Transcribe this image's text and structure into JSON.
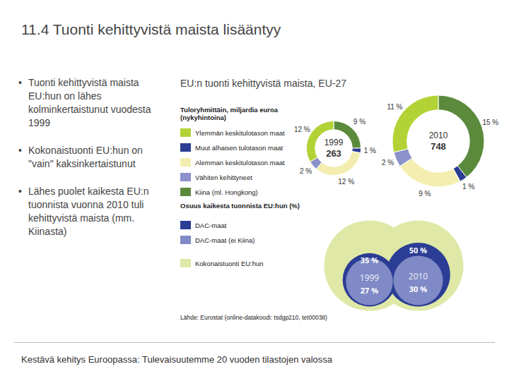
{
  "title": "11.4 Tuonti kehittyvistä maista lisääntyy",
  "bullets": [
    "Tuonti kehittyvistä maista EU:hun on lähes kolminkertaistunut vuodesta 1999",
    "Kokonaistuonti EU:hun on \"vain\" kaksinkertaistunut",
    "Lähes puolet kaikesta EU:n tuonnista vuonna 2010 tuli kehittyvistä maista (mm. Kiinasta)"
  ],
  "chart_data": [
    {
      "type": "donut",
      "title": "EU:n tuonti kehittyvistä maista, EU-27",
      "subtitle": "Tuloryhmittäin, miljardia euroa (nykyhintoina)",
      "categories": [
        "1999",
        "2010"
      ],
      "totals": [
        263,
        748
      ],
      "data_labels": true,
      "series": [
        {
          "name": "Ylemmän keskitulotason maat",
          "color": "#b3d235",
          "values": [
            12,
            11
          ],
          "value_labels": [
            "12 %",
            "11 %"
          ]
        },
        {
          "name": "Muut alhaisen tulotason maat",
          "color": "#2b3d94",
          "values": [
            1,
            1
          ],
          "value_labels": [
            "1 %",
            "1 %"
          ]
        },
        {
          "name": "Alemman keskitulotason maat",
          "color": "#f3eeb0",
          "values": [
            12,
            9
          ],
          "value_labels": [
            "12 %",
            "9 %"
          ]
        },
        {
          "name": "Vähiten kehittyneet",
          "color": "#8a91cb",
          "values": [
            2,
            2
          ],
          "value_labels": [
            "2 %",
            "2 %"
          ]
        },
        {
          "name": "Kiina (ml. Hongkong)",
          "color": "#5b8a3d",
          "values": [
            9,
            15
          ],
          "value_labels": [
            "9 %",
            "15 %"
          ]
        }
      ]
    },
    {
      "type": "bubble",
      "title": "Osuus kaikesta tuonnista EU:hun (%)",
      "categories": [
        "1999",
        "2010"
      ],
      "data_labels": true,
      "series": [
        {
          "name": "DAC-maat",
          "color": "#2b3d94",
          "values": [
            35,
            50
          ],
          "value_labels": [
            "35 %",
            "50 %"
          ]
        },
        {
          "name": "DAC-maat (ei Kiina)",
          "color": "#7f8ac6",
          "values": [
            27,
            30
          ],
          "value_labels": [
            "27 %",
            "30 %"
          ]
        },
        {
          "name": "Kokonaistuonti EU:hun",
          "color": "#dfe8a6",
          "values": [
            100,
            100
          ]
        }
      ]
    }
  ],
  "source": "Lähde: Eurostat (online-datakoodi: tsdgp210, tet00038)",
  "footer": "Kestävä kehitys Euroopassa: Tulevaisuutemme 20 vuoden tilastojen valossa"
}
